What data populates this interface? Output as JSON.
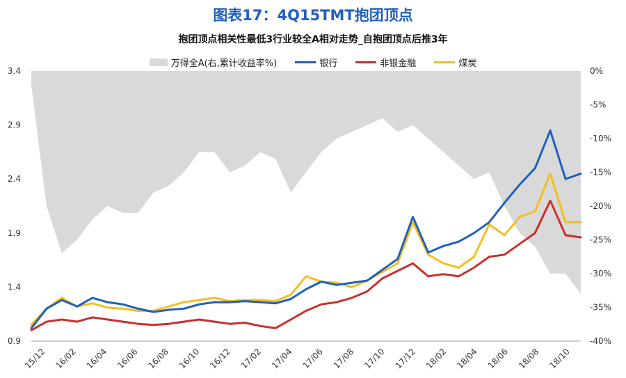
{
  "title": "图表17：4Q15TMT抱团顶点",
  "chart_data": {
    "type": "line",
    "title": "抱团顶点相关性最低3行业较全A相对走势_自抱团顶点后推3年",
    "xlabel": "",
    "ylabel": "",
    "ylim": [
      0.9,
      3.4
    ],
    "y2lim": [
      -40,
      0
    ],
    "yticks": [
      "3.4",
      "2.9",
      "2.4",
      "1.9",
      "1.4",
      "0.9"
    ],
    "y2ticks": [
      "0%",
      "-5%",
      "-10%",
      "-15%",
      "-20%",
      "-25%",
      "-30%",
      "-35%",
      "-40%"
    ],
    "xticks": [
      "15/12",
      "16/02",
      "16/04",
      "16/06",
      "16/08",
      "16/10",
      "16/12",
      "17/02",
      "17/04",
      "17/06",
      "17/08",
      "17/10",
      "17/12",
      "18/02",
      "18/04",
      "18/06",
      "18/08",
      "18/10"
    ],
    "grid": false,
    "legend_position": "top",
    "x": [
      "15/12",
      "16/01",
      "16/02",
      "16/03",
      "16/04",
      "16/05",
      "16/06",
      "16/07",
      "16/08",
      "16/09",
      "16/10",
      "16/11",
      "16/12",
      "17/01",
      "17/02",
      "17/03",
      "17/04",
      "17/05",
      "17/06",
      "17/07",
      "17/08",
      "17/09",
      "17/10",
      "17/11",
      "17/12",
      "18/01",
      "18/02",
      "18/03",
      "18/04",
      "18/05",
      "18/06",
      "18/07",
      "18/08",
      "18/09",
      "18/10",
      "18/11",
      "18/12"
    ],
    "area": {
      "name": "万得全A(右,累计收益率%)",
      "color": "#d9d9d9",
      "values": [
        -2,
        -20,
        -27,
        -25,
        -22,
        -20,
        -21,
        -21,
        -18,
        -17,
        -15,
        -12,
        -12,
        -15,
        -14,
        -12,
        -13,
        -18,
        -15,
        -12,
        -10,
        -9,
        -8,
        -7,
        -9,
        -8,
        -10,
        -12,
        -14,
        -16,
        -15,
        -20,
        -24,
        -26,
        -30,
        -30,
        -33
      ]
    },
    "series": [
      {
        "name": "银行",
        "color": "#1f5fbf",
        "values": [
          1.02,
          1.2,
          1.28,
          1.22,
          1.3,
          1.26,
          1.24,
          1.2,
          1.17,
          1.19,
          1.2,
          1.24,
          1.26,
          1.26,
          1.27,
          1.26,
          1.25,
          1.29,
          1.38,
          1.45,
          1.42,
          1.44,
          1.46,
          1.56,
          1.66,
          2.05,
          1.72,
          1.78,
          1.82,
          1.9,
          2.0,
          2.18,
          2.35,
          2.5,
          2.85,
          2.4,
          2.45
        ]
      },
      {
        "name": "非银金融",
        "color": "#c9302c",
        "values": [
          1.0,
          1.08,
          1.1,
          1.08,
          1.12,
          1.1,
          1.08,
          1.06,
          1.05,
          1.06,
          1.08,
          1.1,
          1.08,
          1.06,
          1.07,
          1.04,
          1.02,
          1.1,
          1.18,
          1.24,
          1.26,
          1.3,
          1.36,
          1.48,
          1.55,
          1.62,
          1.5,
          1.52,
          1.5,
          1.58,
          1.68,
          1.7,
          1.8,
          1.9,
          2.2,
          1.88,
          1.86
        ]
      },
      {
        "name": "煤炭",
        "color": "#f2c01e",
        "values": [
          1.05,
          1.2,
          1.3,
          1.22,
          1.25,
          1.21,
          1.2,
          1.18,
          1.18,
          1.22,
          1.26,
          1.28,
          1.3,
          1.27,
          1.28,
          1.28,
          1.27,
          1.33,
          1.5,
          1.45,
          1.44,
          1.4,
          1.46,
          1.54,
          1.62,
          2.0,
          1.7,
          1.62,
          1.58,
          1.68,
          1.98,
          1.88,
          2.05,
          2.1,
          2.45,
          2.0,
          2.0
        ]
      }
    ]
  }
}
